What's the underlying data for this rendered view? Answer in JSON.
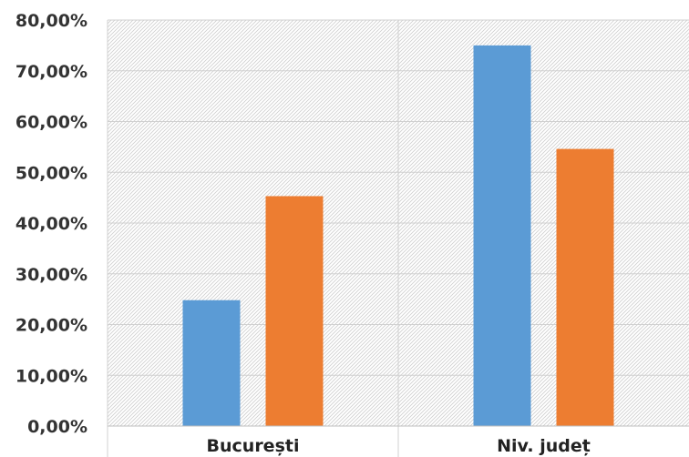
{
  "chart_data": {
    "type": "bar",
    "categories": [
      "București",
      "Niv. județ"
    ],
    "series": [
      {
        "values": [
          24.8,
          75.0
        ]
      },
      {
        "values": [
          45.3,
          54.6
        ]
      }
    ],
    "yticks": [
      "0,00%",
      "10,00%",
      "20,00%",
      "30,00%",
      "40,00%",
      "50,00%",
      "60,00%",
      "70,00%",
      "80,00%"
    ],
    "ylim": [
      0,
      80
    ],
    "title": "",
    "xlabel": "",
    "ylabel": "",
    "grid": true,
    "plot_background": "hatched",
    "colors": [
      "#5b9bd5",
      "#ed7d31"
    ]
  }
}
